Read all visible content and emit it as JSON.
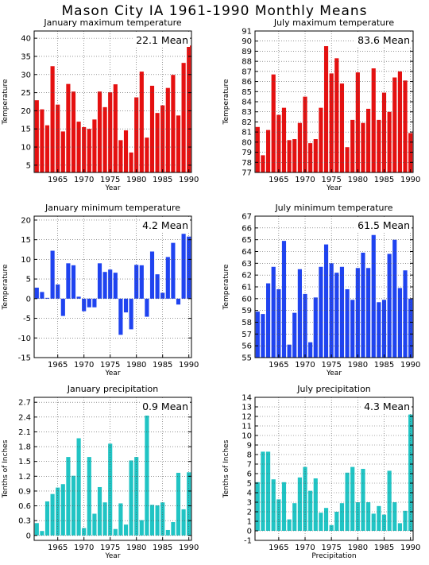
{
  "title": "Mason City IA   1961-1990 Monthly Means",
  "colors": {
    "red": "#e51010",
    "blue": "#1f43f0",
    "teal": "#20c4c4",
    "grid": "#555555"
  },
  "chart_data": [
    {
      "type": "bar",
      "title": "January maximum temperature",
      "mean_label": "22.1 Mean",
      "xlabel": "Year",
      "ylabel": "Temperature",
      "color": "#e51010",
      "xlim": [
        1960.5,
        1990.5
      ],
      "ylim": [
        3,
        42
      ],
      "yticks": [
        5,
        10,
        15,
        20,
        25,
        30,
        35,
        40
      ],
      "xticks": [
        1965,
        1970,
        1975,
        1980,
        1985,
        1990
      ],
      "x": [
        1961,
        1962,
        1963,
        1964,
        1965,
        1966,
        1967,
        1968,
        1969,
        1970,
        1971,
        1972,
        1973,
        1974,
        1975,
        1976,
        1977,
        1978,
        1979,
        1980,
        1981,
        1982,
        1983,
        1984,
        1985,
        1986,
        1987,
        1988,
        1989,
        1990
      ],
      "values": [
        22.9,
        20.4,
        16.0,
        32.3,
        21.7,
        14.3,
        27.4,
        25.3,
        17.0,
        15.5,
        15.0,
        17.6,
        25.3,
        21.0,
        25.1,
        27.3,
        11.9,
        14.6,
        8.5,
        23.7,
        30.8,
        12.6,
        26.9,
        19.4,
        21.5,
        26.3,
        29.9,
        18.7,
        33.2,
        38.0
      ]
    },
    {
      "type": "bar",
      "title": "July maximum temperature",
      "mean_label": "83.6 Mean",
      "xlabel": "Year",
      "ylabel": "Temperature",
      "color": "#e51010",
      "xlim": [
        1960.5,
        1990.5
      ],
      "ylim": [
        77,
        91
      ],
      "yticks": [
        77,
        78,
        79,
        80,
        81,
        82,
        83,
        84,
        85,
        86,
        87,
        88,
        89,
        90,
        91
      ],
      "xticks": [
        1965,
        1970,
        1975,
        1980,
        1985,
        1990
      ],
      "x": [
        1961,
        1962,
        1963,
        1964,
        1965,
        1966,
        1967,
        1968,
        1969,
        1970,
        1971,
        1972,
        1973,
        1974,
        1975,
        1976,
        1977,
        1978,
        1979,
        1980,
        1981,
        1982,
        1983,
        1984,
        1985,
        1986,
        1987,
        1988,
        1989,
        1990
      ],
      "values": [
        81.5,
        78.7,
        81.2,
        86.7,
        82.7,
        83.4,
        80.2,
        80.3,
        81.9,
        84.5,
        79.9,
        80.3,
        83.4,
        89.5,
        86.8,
        88.3,
        85.8,
        79.5,
        82.2,
        86.9,
        81.9,
        83.3,
        87.3,
        82.2,
        84.9,
        83.0,
        86.4,
        87.0,
        86.1,
        80.9
      ]
    },
    {
      "type": "bar",
      "title": "January minimum temperature",
      "mean_label": "4.2 Mean",
      "xlabel": "Year",
      "ylabel": "Temperature",
      "color": "#1f43f0",
      "xlim": [
        1960.5,
        1990.5
      ],
      "ylim": [
        -15,
        21
      ],
      "yticks": [
        -15,
        -10,
        -5,
        0,
        5,
        10,
        15,
        20
      ],
      "xticks": [
        1965,
        1970,
        1975,
        1980,
        1985,
        1990
      ],
      "x": [
        1961,
        1962,
        1963,
        1964,
        1965,
        1966,
        1967,
        1968,
        1969,
        1970,
        1971,
        1972,
        1973,
        1974,
        1975,
        1976,
        1977,
        1978,
        1979,
        1980,
        1981,
        1982,
        1983,
        1984,
        1985,
        1986,
        1987,
        1988,
        1989,
        1990
      ],
      "values": [
        2.8,
        1.7,
        0.2,
        12.2,
        3.6,
        -4.4,
        9.0,
        8.5,
        0.5,
        -3.2,
        -2.2,
        -2.2,
        9.0,
        6.8,
        7.4,
        6.6,
        -9.2,
        -3.5,
        -7.8,
        8.6,
        8.5,
        -4.6,
        12.0,
        6.2,
        1.5,
        10.6,
        14.2,
        -1.5,
        16.5,
        15.8
      ]
    },
    {
      "type": "bar",
      "title": "July minimum temperature",
      "mean_label": "61.5 Mean",
      "xlabel": "Year",
      "ylabel": "Temperature",
      "color": "#1f43f0",
      "xlim": [
        1960.5,
        1990.5
      ],
      "ylim": [
        55,
        67
      ],
      "yticks": [
        55,
        56,
        57,
        58,
        59,
        60,
        61,
        62,
        63,
        64,
        65,
        66,
        67
      ],
      "xticks": [
        1965,
        1970,
        1975,
        1980,
        1985,
        1990
      ],
      "x": [
        1961,
        1962,
        1963,
        1964,
        1965,
        1966,
        1967,
        1968,
        1969,
        1970,
        1971,
        1972,
        1973,
        1974,
        1975,
        1976,
        1977,
        1978,
        1979,
        1980,
        1981,
        1982,
        1983,
        1984,
        1985,
        1986,
        1987,
        1988,
        1989,
        1990
      ],
      "values": [
        58.9,
        58.7,
        61.3,
        62.7,
        60.8,
        64.9,
        56.1,
        58.8,
        62.5,
        60.4,
        56.3,
        60.1,
        62.7,
        64.6,
        63.0,
        62.2,
        62.7,
        60.8,
        59.9,
        62.6,
        63.9,
        62.6,
        65.4,
        59.7,
        59.9,
        63.8,
        65.0,
        60.9,
        62.4,
        60.0
      ]
    },
    {
      "type": "bar",
      "title": "January precipitation",
      "mean_label": "0.9 Mean",
      "xlabel": "Year",
      "ylabel": "Tenths of Inches",
      "color": "#20c4c4",
      "xlim": [
        1960.5,
        1990.5
      ],
      "ylim": [
        -0.1,
        2.8
      ],
      "yticks": [
        0,
        0.3,
        0.6,
        0.9,
        1.2,
        1.5,
        1.8,
        2.1,
        2.4,
        2.7
      ],
      "ytick_labels": [
        "0",
        "0.3",
        "0.6",
        "0.9",
        "1.2",
        "1.5",
        "1.8",
        "2.1",
        "2.4",
        "2.7"
      ],
      "xticks": [
        1965,
        1970,
        1975,
        1980,
        1985,
        1990
      ],
      "x": [
        1961,
        1962,
        1963,
        1964,
        1965,
        1966,
        1967,
        1968,
        1969,
        1970,
        1971,
        1972,
        1973,
        1974,
        1975,
        1976,
        1977,
        1978,
        1979,
        1980,
        1981,
        1982,
        1983,
        1984,
        1985,
        1986,
        1987,
        1988,
        1989,
        1990
      ],
      "values": [
        0.25,
        0.09,
        0.69,
        0.84,
        0.97,
        1.04,
        1.59,
        1.21,
        1.97,
        0.15,
        1.59,
        0.44,
        0.98,
        0.67,
        1.86,
        0.13,
        0.65,
        0.22,
        1.52,
        1.59,
        0.31,
        2.43,
        0.62,
        0.61,
        0.67,
        0.11,
        0.27,
        1.27,
        0.53,
        1.28
      ]
    },
    {
      "type": "bar",
      "title": "July precipitation",
      "mean_label": "4.3 Mean",
      "xlabel": "Precipitation",
      "ylabel": "Tenths of Inches",
      "color": "#20c4c4",
      "xlim": [
        1960.5,
        1990.5
      ],
      "ylim": [
        -1,
        14
      ],
      "yticks": [
        -1,
        0,
        1,
        2,
        3,
        4,
        5,
        6,
        7,
        8,
        9,
        10,
        11,
        12,
        13,
        14
      ],
      "xticks": [
        1965,
        1970,
        1975,
        1980,
        1985,
        1990
      ],
      "x": [
        1961,
        1962,
        1963,
        1964,
        1965,
        1966,
        1967,
        1968,
        1969,
        1970,
        1971,
        1972,
        1973,
        1974,
        1975,
        1976,
        1977,
        1978,
        1979,
        1980,
        1981,
        1982,
        1983,
        1984,
        1985,
        1986,
        1987,
        1988,
        1989,
        1990
      ],
      "values": [
        5.1,
        8.3,
        8.3,
        5.4,
        3.3,
        5.1,
        1.2,
        2.9,
        5.6,
        6.7,
        4.2,
        5.5,
        1.9,
        2.4,
        0.6,
        2.0,
        2.9,
        6.1,
        6.7,
        3.0,
        6.5,
        3.0,
        1.8,
        2.6,
        1.7,
        6.3,
        3.0,
        0.8,
        2.1,
        12.2
      ]
    }
  ]
}
